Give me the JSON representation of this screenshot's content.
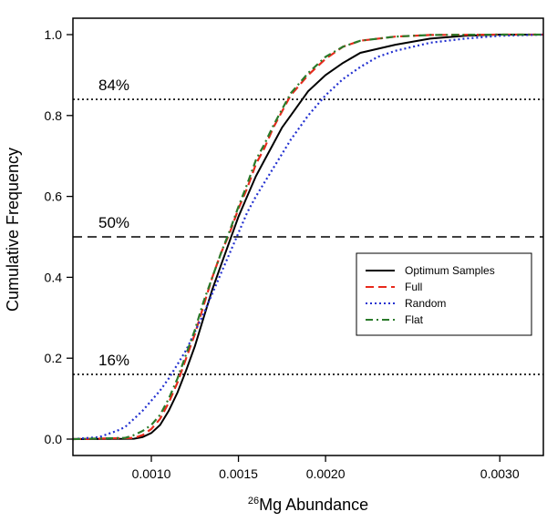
{
  "chart_data": {
    "type": "line",
    "title": "",
    "xlabel_sup": "26",
    "xlabel": "Mg Abundance",
    "ylabel": "Cumulative Frequency",
    "xlim": [
      0.00055,
      0.00325
    ],
    "ylim": [
      0.0,
      1.0
    ],
    "x_ticks": [
      0.001,
      0.0015,
      0.002,
      0.003
    ],
    "x_tick_labels": [
      "0.0010",
      "0.0015",
      "0.0020",
      "0.0030"
    ],
    "y_ticks": [
      0.0,
      0.2,
      0.4,
      0.6,
      0.8,
      1.0
    ],
    "y_tick_labels": [
      "0.0",
      "0.2",
      "0.4",
      "0.6",
      "0.8",
      "1.0"
    ],
    "reference_lines": [
      {
        "y": 0.84,
        "label": "84%",
        "style": "dotted"
      },
      {
        "y": 0.5,
        "label": "50%",
        "style": "dashed"
      },
      {
        "y": 0.16,
        "label": "16%",
        "style": "dotted"
      }
    ],
    "legend_position": "right-middle",
    "series": [
      {
        "name": "Optimum Samples",
        "color": "#000000",
        "dash": "solid",
        "points": [
          [
            0.00055,
            0.0
          ],
          [
            0.0009,
            0.001
          ],
          [
            0.00095,
            0.005
          ],
          [
            0.001,
            0.015
          ],
          [
            0.00105,
            0.035
          ],
          [
            0.0011,
            0.07
          ],
          [
            0.00115,
            0.115
          ],
          [
            0.0012,
            0.17
          ],
          [
            0.00125,
            0.23
          ],
          [
            0.0013,
            0.3
          ],
          [
            0.00135,
            0.37
          ],
          [
            0.0014,
            0.43
          ],
          [
            0.00145,
            0.49
          ],
          [
            0.0015,
            0.55
          ],
          [
            0.00155,
            0.6
          ],
          [
            0.0016,
            0.65
          ],
          [
            0.00165,
            0.69
          ],
          [
            0.0017,
            0.73
          ],
          [
            0.00175,
            0.77
          ],
          [
            0.0018,
            0.8
          ],
          [
            0.0019,
            0.86
          ],
          [
            0.002,
            0.9
          ],
          [
            0.0021,
            0.93
          ],
          [
            0.0022,
            0.955
          ],
          [
            0.0024,
            0.975
          ],
          [
            0.0026,
            0.99
          ],
          [
            0.0028,
            0.997
          ],
          [
            0.003,
            1.0
          ],
          [
            0.00325,
            1.0
          ]
        ]
      },
      {
        "name": "Full",
        "color": "#e8291c",
        "dash": "dashed",
        "points": [
          [
            0.00055,
            0.0
          ],
          [
            0.0009,
            0.003
          ],
          [
            0.00095,
            0.01
          ],
          [
            0.001,
            0.025
          ],
          [
            0.00105,
            0.05
          ],
          [
            0.0011,
            0.09
          ],
          [
            0.00115,
            0.14
          ],
          [
            0.0012,
            0.2
          ],
          [
            0.00125,
            0.26
          ],
          [
            0.0013,
            0.33
          ],
          [
            0.00135,
            0.4
          ],
          [
            0.0014,
            0.46
          ],
          [
            0.00145,
            0.51
          ],
          [
            0.0015,
            0.57
          ],
          [
            0.00155,
            0.62
          ],
          [
            0.0016,
            0.68
          ],
          [
            0.00165,
            0.72
          ],
          [
            0.0017,
            0.77
          ],
          [
            0.00175,
            0.81
          ],
          [
            0.0018,
            0.85
          ],
          [
            0.0019,
            0.9
          ],
          [
            0.002,
            0.94
          ],
          [
            0.0021,
            0.97
          ],
          [
            0.0022,
            0.985
          ],
          [
            0.0024,
            0.995
          ],
          [
            0.0026,
            0.999
          ],
          [
            0.003,
            1.0
          ],
          [
            0.00325,
            1.0
          ]
        ]
      },
      {
        "name": "Random",
        "color": "#2230d0",
        "dash": "dotted",
        "points": [
          [
            0.00055,
            0.0
          ],
          [
            0.0007,
            0.005
          ],
          [
            0.0008,
            0.02
          ],
          [
            0.00085,
            0.03
          ],
          [
            0.0009,
            0.05
          ],
          [
            0.00095,
            0.07
          ],
          [
            0.001,
            0.095
          ],
          [
            0.00105,
            0.12
          ],
          [
            0.0011,
            0.15
          ],
          [
            0.00115,
            0.185
          ],
          [
            0.0012,
            0.22
          ],
          [
            0.00125,
            0.265
          ],
          [
            0.0013,
            0.31
          ],
          [
            0.00135,
            0.36
          ],
          [
            0.0014,
            0.41
          ],
          [
            0.00145,
            0.46
          ],
          [
            0.0015,
            0.51
          ],
          [
            0.00155,
            0.56
          ],
          [
            0.0016,
            0.6
          ],
          [
            0.0017,
            0.67
          ],
          [
            0.0018,
            0.74
          ],
          [
            0.0019,
            0.8
          ],
          [
            0.002,
            0.85
          ],
          [
            0.0021,
            0.89
          ],
          [
            0.0022,
            0.92
          ],
          [
            0.0023,
            0.945
          ],
          [
            0.0024,
            0.96
          ],
          [
            0.0026,
            0.98
          ],
          [
            0.0028,
            0.99
          ],
          [
            0.003,
            0.997
          ],
          [
            0.00325,
            1.0
          ]
        ]
      },
      {
        "name": "Flat",
        "color": "#2a7a2a",
        "dash": "dashdot",
        "points": [
          [
            0.00055,
            0.0
          ],
          [
            0.00085,
            0.003
          ],
          [
            0.0009,
            0.01
          ],
          [
            0.00095,
            0.02
          ],
          [
            0.001,
            0.035
          ],
          [
            0.00105,
            0.06
          ],
          [
            0.0011,
            0.1
          ],
          [
            0.00115,
            0.15
          ],
          [
            0.0012,
            0.21
          ],
          [
            0.00125,
            0.27
          ],
          [
            0.0013,
            0.34
          ],
          [
            0.00135,
            0.4
          ],
          [
            0.0014,
            0.46
          ],
          [
            0.00145,
            0.515
          ],
          [
            0.0015,
            0.575
          ],
          [
            0.00155,
            0.63
          ],
          [
            0.0016,
            0.69
          ],
          [
            0.00165,
            0.73
          ],
          [
            0.0017,
            0.775
          ],
          [
            0.00175,
            0.815
          ],
          [
            0.0018,
            0.855
          ],
          [
            0.0019,
            0.905
          ],
          [
            0.002,
            0.945
          ],
          [
            0.0021,
            0.97
          ],
          [
            0.0022,
            0.985
          ],
          [
            0.0024,
            0.995
          ],
          [
            0.0026,
            0.999
          ],
          [
            0.003,
            1.0
          ],
          [
            0.00325,
            1.0
          ]
        ]
      }
    ]
  }
}
